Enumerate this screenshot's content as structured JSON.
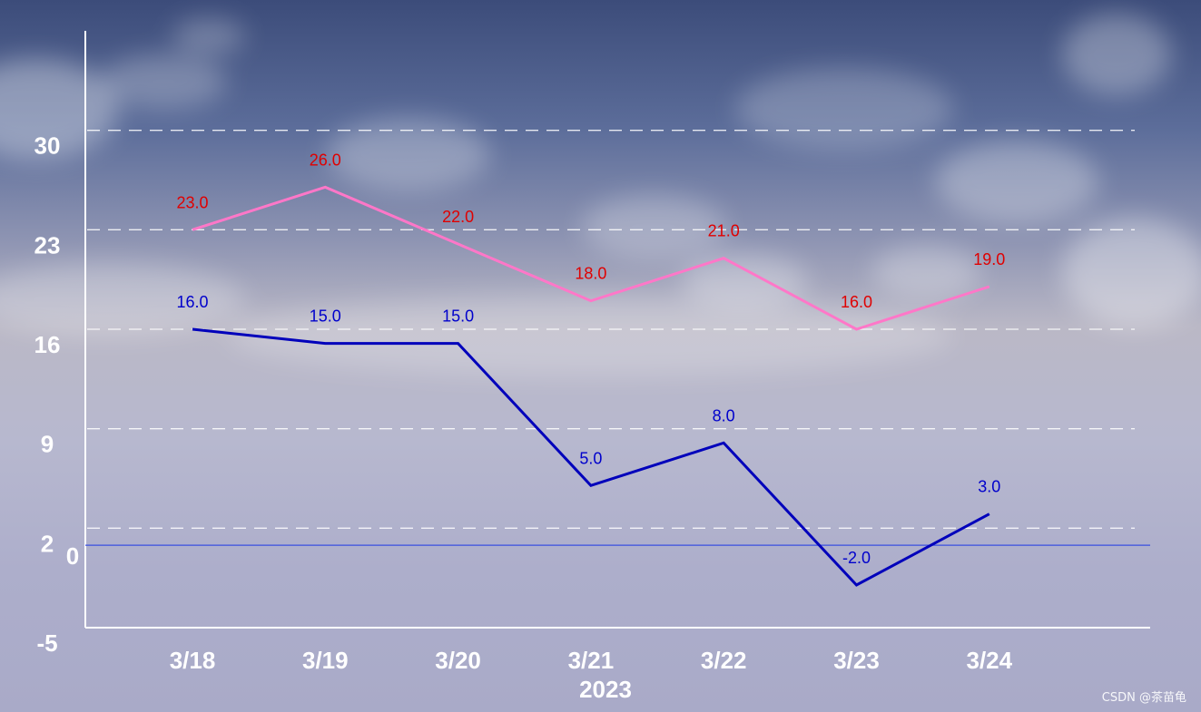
{
  "chart_data": {
    "type": "line",
    "categories": [
      "3/18",
      "3/19",
      "3/20",
      "3/21",
      "3/22",
      "3/23",
      "3/24"
    ],
    "xlabel": "2023",
    "ylim": [
      -5,
      37
    ],
    "yticks": [
      -5,
      2,
      9,
      16,
      23,
      30
    ],
    "zero_label": "0",
    "grid": "horizontal dashed",
    "series": [
      {
        "color": "#ff77c8",
        "label_color": "#e00000",
        "values": [
          23.0,
          26.0,
          22.0,
          18.0,
          21.0,
          16.0,
          19.0
        ],
        "labels": [
          "23.0",
          "26.0",
          "22.0",
          "18.0",
          "21.0",
          "16.0",
          "19.0"
        ]
      },
      {
        "color": "#0000bb",
        "label_color": "#0000cc",
        "values": [
          16.0,
          15.0,
          15.0,
          5.0,
          8.0,
          -2.0,
          3.0
        ],
        "labels": [
          "16.0",
          "15.0",
          "15.0",
          "5.0",
          "8.0",
          "-2.0",
          "3.0"
        ]
      }
    ],
    "baseline": {
      "value": 0.8,
      "color": "#3a4fe0"
    }
  },
  "watermark": "CSDN @茶苗龟"
}
